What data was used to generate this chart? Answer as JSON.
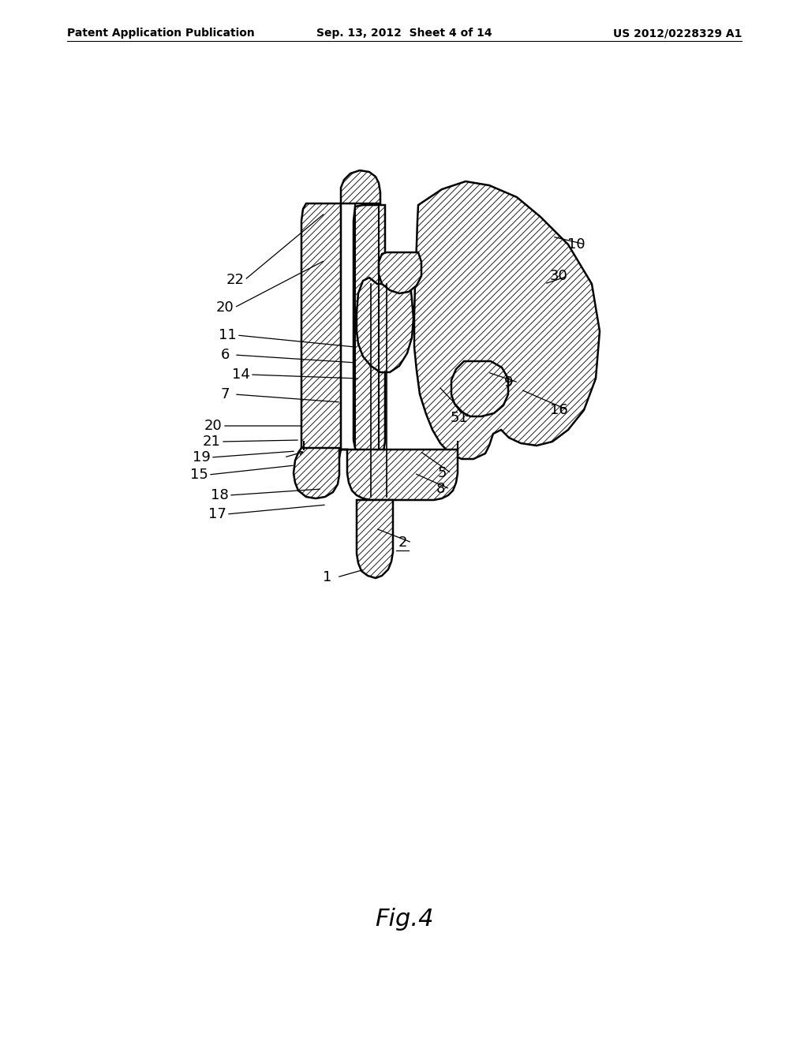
{
  "header_left": "Patent Application Publication",
  "header_mid": "Sep. 13, 2012  Sheet 4 of 14",
  "header_right": "US 2012/0228329 A1",
  "figure_label": "Fig.4",
  "bg_color": "#ffffff",
  "line_color": "#000000",
  "header_fontsize": 10,
  "label_fontsize": 13,
  "fig_label_fontsize": 22
}
